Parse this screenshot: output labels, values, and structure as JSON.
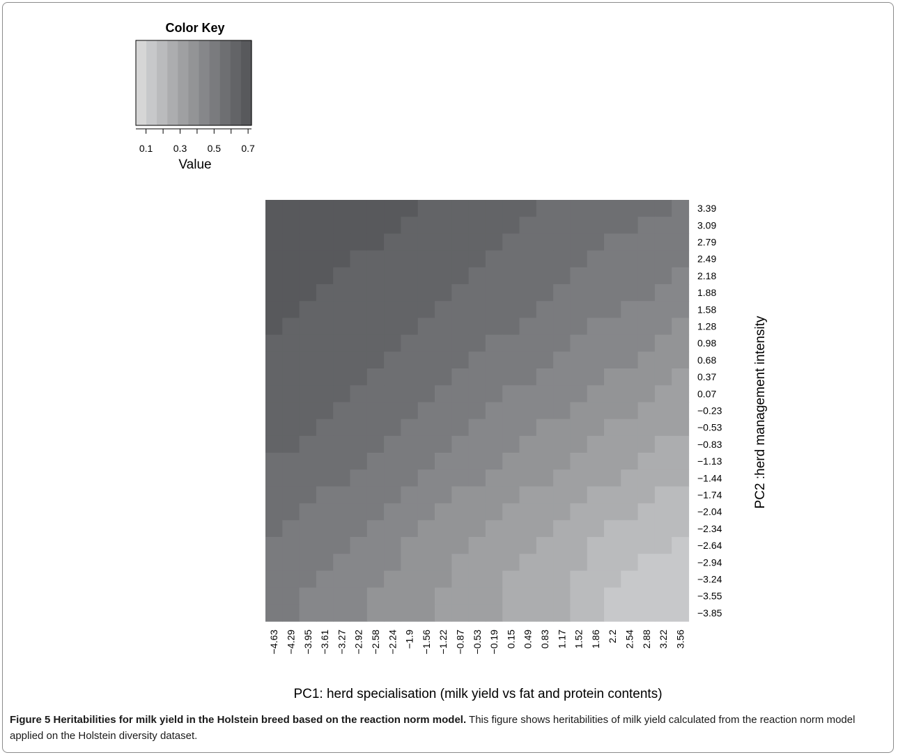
{
  "chart_data": {
    "type": "heatmap",
    "color_key": {
      "title": "Color Key",
      "xlabel": "Value",
      "tick_labels": [
        "0.1",
        "0.3",
        "0.5",
        "0.7"
      ],
      "tick_values": [
        0.1,
        0.3,
        0.5,
        0.7
      ],
      "range": [
        0.04,
        0.72
      ],
      "colors": [
        "#d6d6d6",
        "#c7c8ca",
        "#babbbd",
        "#acadaf",
        "#9fa0a2",
        "#939496",
        "#86878a",
        "#7a7b7e",
        "#6e6f72",
        "#636467",
        "#58595c"
      ]
    },
    "xlabel": "PC1: herd specialisation (milk yield vs fat and protein contents)",
    "ylabel": "PC2 :herd management intensity",
    "x_categories": [
      "−4.63",
      "−4.29",
      "−3.95",
      "−3.61",
      "−3.27",
      "−2.92",
      "−2.58",
      "−2.24",
      "−1.9",
      "−1.56",
      "−1.22",
      "−0.87",
      "−0.53",
      "−0.19",
      "0.15",
      "0.49",
      "0.83",
      "1.17",
      "1.52",
      "1.86",
      "2.2",
      "2.54",
      "2.88",
      "3.22",
      "3.56"
    ],
    "y_categories": [
      "3.39",
      "3.09",
      "2.79",
      "2.49",
      "2.18",
      "1.88",
      "1.58",
      "1.28",
      "0.98",
      "0.68",
      "0.37",
      "0.07",
      "−0.23",
      "−0.53",
      "−0.83",
      "−1.13",
      "−1.44",
      "−1.74",
      "−2.04",
      "−2.34",
      "−2.64",
      "−2.94",
      "−3.24",
      "−3.55",
      "−3.85"
    ],
    "values": [
      [
        0.66,
        0.66,
        0.66,
        0.66,
        0.66,
        0.66,
        0.66,
        0.66,
        0.66,
        0.6,
        0.6,
        0.6,
        0.6,
        0.6,
        0.6,
        0.6,
        0.54,
        0.54,
        0.54,
        0.54,
        0.54,
        0.54,
        0.54,
        0.54,
        0.48
      ],
      [
        0.66,
        0.66,
        0.66,
        0.66,
        0.66,
        0.66,
        0.66,
        0.66,
        0.6,
        0.6,
        0.6,
        0.6,
        0.6,
        0.6,
        0.6,
        0.54,
        0.54,
        0.54,
        0.54,
        0.54,
        0.54,
        0.54,
        0.48,
        0.48,
        0.48
      ],
      [
        0.66,
        0.66,
        0.66,
        0.66,
        0.66,
        0.66,
        0.66,
        0.6,
        0.6,
        0.6,
        0.6,
        0.6,
        0.6,
        0.6,
        0.54,
        0.54,
        0.54,
        0.54,
        0.54,
        0.54,
        0.48,
        0.48,
        0.48,
        0.48,
        0.48
      ],
      [
        0.66,
        0.66,
        0.66,
        0.66,
        0.66,
        0.6,
        0.6,
        0.6,
        0.6,
        0.6,
        0.6,
        0.6,
        0.6,
        0.54,
        0.54,
        0.54,
        0.54,
        0.54,
        0.54,
        0.48,
        0.48,
        0.48,
        0.48,
        0.48,
        0.48
      ],
      [
        0.66,
        0.66,
        0.66,
        0.66,
        0.6,
        0.6,
        0.6,
        0.6,
        0.6,
        0.6,
        0.6,
        0.6,
        0.54,
        0.54,
        0.54,
        0.54,
        0.54,
        0.54,
        0.48,
        0.48,
        0.48,
        0.48,
        0.48,
        0.48,
        0.42
      ],
      [
        0.66,
        0.66,
        0.66,
        0.6,
        0.6,
        0.6,
        0.6,
        0.6,
        0.6,
        0.6,
        0.6,
        0.54,
        0.54,
        0.54,
        0.54,
        0.54,
        0.54,
        0.48,
        0.48,
        0.48,
        0.48,
        0.48,
        0.48,
        0.42,
        0.42
      ],
      [
        0.66,
        0.66,
        0.6,
        0.6,
        0.6,
        0.6,
        0.6,
        0.6,
        0.6,
        0.6,
        0.54,
        0.54,
        0.54,
        0.54,
        0.54,
        0.54,
        0.48,
        0.48,
        0.48,
        0.48,
        0.48,
        0.42,
        0.42,
        0.42,
        0.42
      ],
      [
        0.66,
        0.6,
        0.6,
        0.6,
        0.6,
        0.6,
        0.6,
        0.6,
        0.6,
        0.54,
        0.54,
        0.54,
        0.54,
        0.54,
        0.54,
        0.48,
        0.48,
        0.48,
        0.48,
        0.42,
        0.42,
        0.42,
        0.42,
        0.42,
        0.36
      ],
      [
        0.6,
        0.6,
        0.6,
        0.6,
        0.6,
        0.6,
        0.6,
        0.6,
        0.54,
        0.54,
        0.54,
        0.54,
        0.54,
        0.48,
        0.48,
        0.48,
        0.48,
        0.48,
        0.42,
        0.42,
        0.42,
        0.42,
        0.42,
        0.36,
        0.36
      ],
      [
        0.6,
        0.6,
        0.6,
        0.6,
        0.6,
        0.6,
        0.6,
        0.54,
        0.54,
        0.54,
        0.54,
        0.54,
        0.48,
        0.48,
        0.48,
        0.48,
        0.48,
        0.42,
        0.42,
        0.42,
        0.42,
        0.42,
        0.36,
        0.36,
        0.36
      ],
      [
        0.6,
        0.6,
        0.6,
        0.6,
        0.6,
        0.6,
        0.54,
        0.54,
        0.54,
        0.54,
        0.54,
        0.48,
        0.48,
        0.48,
        0.48,
        0.48,
        0.42,
        0.42,
        0.42,
        0.42,
        0.36,
        0.36,
        0.36,
        0.36,
        0.3
      ],
      [
        0.6,
        0.6,
        0.6,
        0.6,
        0.6,
        0.54,
        0.54,
        0.54,
        0.54,
        0.54,
        0.48,
        0.48,
        0.48,
        0.48,
        0.42,
        0.42,
        0.42,
        0.42,
        0.42,
        0.36,
        0.36,
        0.36,
        0.36,
        0.3,
        0.3
      ],
      [
        0.6,
        0.6,
        0.6,
        0.6,
        0.54,
        0.54,
        0.54,
        0.54,
        0.54,
        0.48,
        0.48,
        0.48,
        0.48,
        0.42,
        0.42,
        0.42,
        0.42,
        0.42,
        0.36,
        0.36,
        0.36,
        0.36,
        0.3,
        0.3,
        0.3
      ],
      [
        0.6,
        0.6,
        0.6,
        0.54,
        0.54,
        0.54,
        0.54,
        0.54,
        0.48,
        0.48,
        0.48,
        0.48,
        0.42,
        0.42,
        0.42,
        0.42,
        0.36,
        0.36,
        0.36,
        0.36,
        0.3,
        0.3,
        0.3,
        0.3,
        0.3
      ],
      [
        0.6,
        0.6,
        0.54,
        0.54,
        0.54,
        0.54,
        0.54,
        0.48,
        0.48,
        0.48,
        0.48,
        0.42,
        0.42,
        0.42,
        0.42,
        0.36,
        0.36,
        0.36,
        0.36,
        0.3,
        0.3,
        0.3,
        0.3,
        0.24,
        0.24
      ],
      [
        0.54,
        0.54,
        0.54,
        0.54,
        0.54,
        0.54,
        0.48,
        0.48,
        0.48,
        0.48,
        0.42,
        0.42,
        0.42,
        0.42,
        0.36,
        0.36,
        0.36,
        0.36,
        0.3,
        0.3,
        0.3,
        0.3,
        0.24,
        0.24,
        0.24
      ],
      [
        0.54,
        0.54,
        0.54,
        0.54,
        0.54,
        0.48,
        0.48,
        0.48,
        0.48,
        0.42,
        0.42,
        0.42,
        0.42,
        0.36,
        0.36,
        0.36,
        0.36,
        0.3,
        0.3,
        0.3,
        0.3,
        0.24,
        0.24,
        0.24,
        0.24
      ],
      [
        0.54,
        0.54,
        0.54,
        0.48,
        0.48,
        0.48,
        0.48,
        0.48,
        0.42,
        0.42,
        0.42,
        0.36,
        0.36,
        0.36,
        0.36,
        0.3,
        0.3,
        0.3,
        0.3,
        0.24,
        0.24,
        0.24,
        0.24,
        0.18,
        0.18
      ],
      [
        0.54,
        0.54,
        0.48,
        0.48,
        0.48,
        0.48,
        0.48,
        0.42,
        0.42,
        0.42,
        0.36,
        0.36,
        0.36,
        0.36,
        0.3,
        0.3,
        0.3,
        0.3,
        0.24,
        0.24,
        0.24,
        0.24,
        0.18,
        0.18,
        0.18
      ],
      [
        0.54,
        0.48,
        0.48,
        0.48,
        0.48,
        0.48,
        0.42,
        0.42,
        0.42,
        0.36,
        0.36,
        0.36,
        0.36,
        0.3,
        0.3,
        0.3,
        0.3,
        0.24,
        0.24,
        0.24,
        0.18,
        0.18,
        0.18,
        0.18,
        0.18
      ],
      [
        0.48,
        0.48,
        0.48,
        0.48,
        0.48,
        0.42,
        0.42,
        0.42,
        0.36,
        0.36,
        0.36,
        0.36,
        0.3,
        0.3,
        0.3,
        0.3,
        0.24,
        0.24,
        0.24,
        0.18,
        0.18,
        0.18,
        0.18,
        0.18,
        0.12
      ],
      [
        0.48,
        0.48,
        0.48,
        0.48,
        0.42,
        0.42,
        0.42,
        0.42,
        0.36,
        0.36,
        0.36,
        0.3,
        0.3,
        0.3,
        0.3,
        0.24,
        0.24,
        0.24,
        0.24,
        0.18,
        0.18,
        0.18,
        0.12,
        0.12,
        0.12
      ],
      [
        0.48,
        0.48,
        0.48,
        0.42,
        0.42,
        0.42,
        0.42,
        0.36,
        0.36,
        0.36,
        0.36,
        0.3,
        0.3,
        0.3,
        0.24,
        0.24,
        0.24,
        0.24,
        0.18,
        0.18,
        0.18,
        0.12,
        0.12,
        0.12,
        0.12
      ],
      [
        0.48,
        0.48,
        0.42,
        0.42,
        0.42,
        0.42,
        0.36,
        0.36,
        0.36,
        0.36,
        0.3,
        0.3,
        0.3,
        0.3,
        0.24,
        0.24,
        0.24,
        0.24,
        0.18,
        0.18,
        0.12,
        0.12,
        0.12,
        0.12,
        0.12
      ],
      [
        0.48,
        0.48,
        0.42,
        0.42,
        0.42,
        0.42,
        0.36,
        0.36,
        0.36,
        0.36,
        0.3,
        0.3,
        0.3,
        0.3,
        0.24,
        0.24,
        0.24,
        0.24,
        0.18,
        0.18,
        0.12,
        0.12,
        0.12,
        0.12,
        0.12
      ]
    ]
  },
  "caption": {
    "label": "Figure 5 Heritabilities for milk yield in the Holstein breed based on the reaction norm model.",
    "text": " This figure shows heritabilities of milk yield calculated from the reaction norm model applied on the Holstein diversity dataset."
  }
}
